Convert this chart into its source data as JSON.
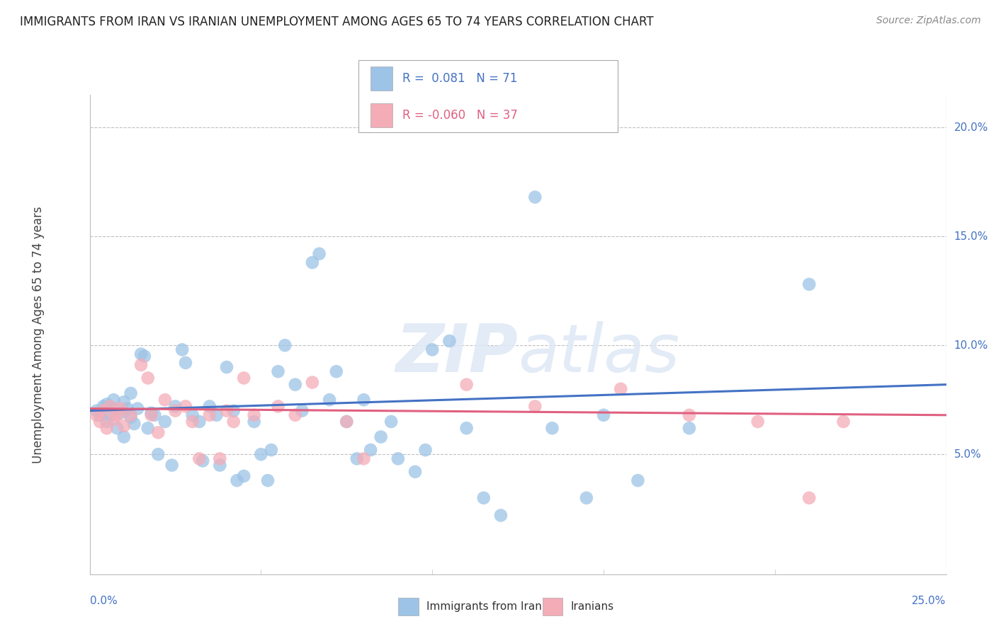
{
  "title": "IMMIGRANTS FROM IRAN VS IRANIAN UNEMPLOYMENT AMONG AGES 65 TO 74 YEARS CORRELATION CHART",
  "source": "Source: ZipAtlas.com",
  "ylabel": "Unemployment Among Ages 65 to 74 years",
  "xlim": [
    0.0,
    0.25
  ],
  "ylim": [
    -0.005,
    0.215
  ],
  "yticks": [
    0.05,
    0.1,
    0.15,
    0.2
  ],
  "ytick_labels": [
    "5.0%",
    "10.0%",
    "15.0%",
    "20.0%"
  ],
  "xtick_labels": [
    "0.0%",
    "25.0%"
  ],
  "blue_line_color": "#4472C4",
  "pink_line_color": "#E06080",
  "blue_scatter_color": "#9DC3E6",
  "pink_scatter_color": "#F4ACB7",
  "background_color": "#ffffff",
  "grid_color": "#C0C0C0",
  "watermark_zip": "ZIP",
  "watermark_atlas": "atlas",
  "title_fontsize": 12,
  "source_fontsize": 10,
  "blue_line_x": [
    0.0,
    0.25
  ],
  "blue_line_y": [
    0.07,
    0.082
  ],
  "pink_line_x": [
    0.0,
    0.25
  ],
  "pink_line_y": [
    0.071,
    0.068
  ],
  "blue_points_x": [
    0.002,
    0.003,
    0.004,
    0.005,
    0.005,
    0.006,
    0.007,
    0.007,
    0.008,
    0.009,
    0.01,
    0.01,
    0.011,
    0.012,
    0.012,
    0.013,
    0.014,
    0.015,
    0.016,
    0.017,
    0.018,
    0.019,
    0.02,
    0.022,
    0.024,
    0.025,
    0.027,
    0.028,
    0.03,
    0.032,
    0.033,
    0.035,
    0.037,
    0.038,
    0.04,
    0.042,
    0.043,
    0.045,
    0.048,
    0.05,
    0.052,
    0.053,
    0.055,
    0.057,
    0.06,
    0.062,
    0.065,
    0.067,
    0.07,
    0.072,
    0.075,
    0.078,
    0.08,
    0.082,
    0.085,
    0.088,
    0.09,
    0.095,
    0.098,
    0.1,
    0.105,
    0.11,
    0.115,
    0.12,
    0.13,
    0.135,
    0.145,
    0.15,
    0.16,
    0.175,
    0.21
  ],
  "blue_points_y": [
    0.07,
    0.068,
    0.072,
    0.065,
    0.073,
    0.068,
    0.071,
    0.075,
    0.062,
    0.069,
    0.058,
    0.074,
    0.071,
    0.067,
    0.078,
    0.064,
    0.071,
    0.096,
    0.095,
    0.062,
    0.069,
    0.068,
    0.05,
    0.065,
    0.045,
    0.072,
    0.098,
    0.092,
    0.068,
    0.065,
    0.047,
    0.072,
    0.068,
    0.045,
    0.09,
    0.07,
    0.038,
    0.04,
    0.065,
    0.05,
    0.038,
    0.052,
    0.088,
    0.1,
    0.082,
    0.07,
    0.138,
    0.142,
    0.075,
    0.088,
    0.065,
    0.048,
    0.075,
    0.052,
    0.058,
    0.065,
    0.048,
    0.042,
    0.052,
    0.098,
    0.102,
    0.062,
    0.03,
    0.022,
    0.168,
    0.062,
    0.03,
    0.068,
    0.038,
    0.062,
    0.128
  ],
  "pink_points_x": [
    0.002,
    0.003,
    0.004,
    0.005,
    0.006,
    0.007,
    0.008,
    0.009,
    0.01,
    0.012,
    0.015,
    0.017,
    0.018,
    0.02,
    0.022,
    0.025,
    0.028,
    0.03,
    0.032,
    0.035,
    0.038,
    0.04,
    0.042,
    0.045,
    0.048,
    0.055,
    0.06,
    0.065,
    0.075,
    0.08,
    0.11,
    0.13,
    0.155,
    0.175,
    0.195,
    0.21,
    0.22
  ],
  "pink_points_y": [
    0.068,
    0.065,
    0.07,
    0.062,
    0.072,
    0.066,
    0.068,
    0.071,
    0.063,
    0.068,
    0.091,
    0.085,
    0.068,
    0.06,
    0.075,
    0.07,
    0.072,
    0.065,
    0.048,
    0.068,
    0.048,
    0.07,
    0.065,
    0.085,
    0.068,
    0.072,
    0.068,
    0.083,
    0.065,
    0.048,
    0.082,
    0.072,
    0.08,
    0.068,
    0.065,
    0.03,
    0.065
  ]
}
